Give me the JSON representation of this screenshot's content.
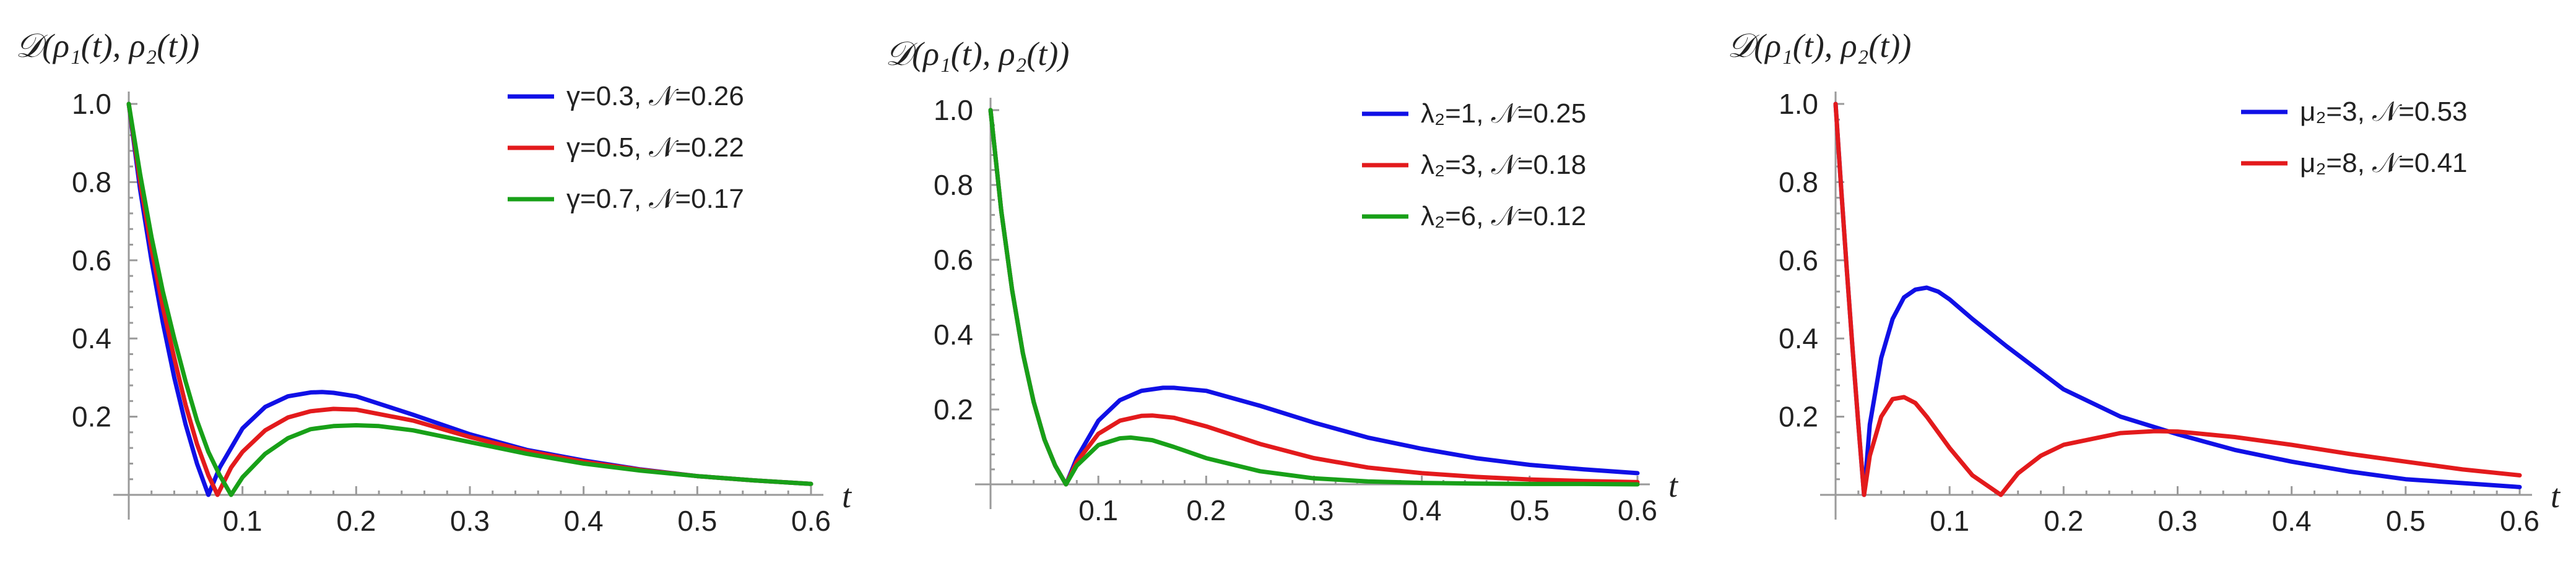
{
  "colors": {
    "blue": "#1010e6",
    "red": "#e31a1c",
    "green": "#18a018",
    "axis": "#9a9a9a"
  },
  "chart_data": [
    {
      "type": "line",
      "ylabel": "𝒟(ρ₁(t), ρ₂(t))",
      "xlabel": "t",
      "xlim": [
        0,
        0.6
      ],
      "ylim": [
        0,
        1.0
      ],
      "xticks": [
        "0.1",
        "0.2",
        "0.3",
        "0.4",
        "0.5",
        "0.6"
      ],
      "yticks": [
        "0.2",
        "0.4",
        "0.6",
        "0.8",
        "1.0"
      ],
      "legend_position": "top-right",
      "series": [
        {
          "name": "γ=0.3, 𝒩=0.26",
          "color": "blue",
          "x": [
            0,
            0.01,
            0.02,
            0.03,
            0.04,
            0.05,
            0.06,
            0.07,
            0.08,
            0.1,
            0.12,
            0.14,
            0.16,
            0.17,
            0.18,
            0.2,
            0.25,
            0.3,
            0.35,
            0.4,
            0.45,
            0.5,
            0.55,
            0.6
          ],
          "y": [
            1.0,
            0.78,
            0.6,
            0.44,
            0.3,
            0.18,
            0.08,
            0.0,
            0.07,
            0.17,
            0.225,
            0.252,
            0.262,
            0.263,
            0.261,
            0.252,
            0.205,
            0.155,
            0.115,
            0.088,
            0.065,
            0.048,
            0.037,
            0.028
          ]
        },
        {
          "name": "γ=0.5, 𝒩=0.22",
          "color": "red",
          "x": [
            0,
            0.01,
            0.02,
            0.03,
            0.04,
            0.05,
            0.06,
            0.07,
            0.078,
            0.09,
            0.1,
            0.12,
            0.14,
            0.16,
            0.18,
            0.2,
            0.25,
            0.3,
            0.35,
            0.4,
            0.45,
            0.5,
            0.55,
            0.6
          ],
          "y": [
            1.0,
            0.8,
            0.63,
            0.48,
            0.35,
            0.23,
            0.13,
            0.05,
            0.0,
            0.07,
            0.11,
            0.165,
            0.198,
            0.214,
            0.22,
            0.218,
            0.19,
            0.148,
            0.112,
            0.085,
            0.064,
            0.048,
            0.037,
            0.028
          ]
        },
        {
          "name": "γ=0.7, 𝒩=0.17",
          "color": "green",
          "x": [
            0,
            0.01,
            0.02,
            0.03,
            0.04,
            0.05,
            0.06,
            0.07,
            0.08,
            0.09,
            0.1,
            0.12,
            0.14,
            0.16,
            0.18,
            0.2,
            0.22,
            0.25,
            0.3,
            0.35,
            0.4,
            0.45,
            0.5,
            0.55,
            0.6
          ],
          "y": [
            1.0,
            0.82,
            0.66,
            0.52,
            0.4,
            0.29,
            0.19,
            0.11,
            0.05,
            0.0,
            0.045,
            0.105,
            0.145,
            0.168,
            0.176,
            0.178,
            0.176,
            0.165,
            0.135,
            0.105,
            0.08,
            0.062,
            0.048,
            0.037,
            0.028
          ]
        }
      ]
    },
    {
      "type": "line",
      "ylabel": "𝒟(ρ₁(t), ρ₂(t))",
      "xlabel": "t",
      "xlim": [
        0,
        0.6
      ],
      "ylim": [
        0,
        1.0
      ],
      "xticks": [
        "0.1",
        "0.2",
        "0.3",
        "0.4",
        "0.5",
        "0.6"
      ],
      "yticks": [
        "0.2",
        "0.4",
        "0.6",
        "0.8",
        "1.0"
      ],
      "legend_position": "top-right",
      "series": [
        {
          "name": "λ₂=1, 𝒩=0.25",
          "color": "blue",
          "x": [
            0,
            0.01,
            0.02,
            0.03,
            0.04,
            0.05,
            0.06,
            0.07,
            0.08,
            0.1,
            0.12,
            0.14,
            0.16,
            0.17,
            0.2,
            0.25,
            0.3,
            0.35,
            0.4,
            0.45,
            0.5,
            0.55,
            0.6
          ],
          "y": [
            1.0,
            0.73,
            0.52,
            0.35,
            0.22,
            0.12,
            0.05,
            0.0,
            0.07,
            0.17,
            0.225,
            0.25,
            0.258,
            0.258,
            0.25,
            0.21,
            0.165,
            0.125,
            0.095,
            0.07,
            0.052,
            0.04,
            0.03
          ]
        },
        {
          "name": "λ₂=3, 𝒩=0.18",
          "color": "red",
          "x": [
            0,
            0.01,
            0.02,
            0.03,
            0.04,
            0.05,
            0.06,
            0.07,
            0.08,
            0.1,
            0.12,
            0.14,
            0.15,
            0.17,
            0.2,
            0.25,
            0.3,
            0.35,
            0.4,
            0.45,
            0.5,
            0.55,
            0.6
          ],
          "y": [
            1.0,
            0.73,
            0.52,
            0.35,
            0.22,
            0.12,
            0.05,
            0.0,
            0.06,
            0.135,
            0.17,
            0.183,
            0.184,
            0.178,
            0.155,
            0.108,
            0.07,
            0.045,
            0.03,
            0.02,
            0.013,
            0.009,
            0.006
          ]
        },
        {
          "name": "λ₂=6, 𝒩=0.12",
          "color": "green",
          "x": [
            0,
            0.01,
            0.02,
            0.03,
            0.04,
            0.05,
            0.06,
            0.07,
            0.08,
            0.1,
            0.12,
            0.13,
            0.15,
            0.17,
            0.2,
            0.25,
            0.3,
            0.35,
            0.4,
            0.45,
            0.5,
            0.55,
            0.6
          ],
          "y": [
            1.0,
            0.73,
            0.52,
            0.35,
            0.22,
            0.12,
            0.05,
            0.0,
            0.05,
            0.105,
            0.123,
            0.125,
            0.118,
            0.1,
            0.07,
            0.035,
            0.016,
            0.008,
            0.004,
            0.002,
            0.001,
            0.001,
            0.0
          ]
        }
      ]
    },
    {
      "type": "line",
      "ylabel": "𝒟(ρ₁(t), ρ₂(t))",
      "xlabel": "t",
      "xlim": [
        0,
        0.6
      ],
      "ylim": [
        0,
        1.0
      ],
      "xticks": [
        "0.1",
        "0.2",
        "0.3",
        "0.4",
        "0.5",
        "0.6"
      ],
      "yticks": [
        "0.2",
        "0.4",
        "0.6",
        "0.8",
        "1.0"
      ],
      "legend_position": "top-right",
      "series": [
        {
          "name": "μ₂=3, 𝒩=0.53",
          "color": "blue",
          "x": [
            0,
            0.005,
            0.01,
            0.015,
            0.02,
            0.025,
            0.03,
            0.04,
            0.05,
            0.06,
            0.07,
            0.08,
            0.09,
            0.1,
            0.12,
            0.15,
            0.2,
            0.25,
            0.3,
            0.35,
            0.4,
            0.45,
            0.5,
            0.55,
            0.6
          ],
          "y": [
            1.0,
            0.78,
            0.57,
            0.37,
            0.18,
            0.0,
            0.18,
            0.35,
            0.45,
            0.505,
            0.525,
            0.53,
            0.52,
            0.5,
            0.45,
            0.38,
            0.27,
            0.2,
            0.155,
            0.115,
            0.085,
            0.06,
            0.04,
            0.03,
            0.02
          ]
        },
        {
          "name": "μ₂=8, 𝒩=0.41",
          "color": "red",
          "x": [
            0,
            0.005,
            0.01,
            0.015,
            0.02,
            0.025,
            0.03,
            0.04,
            0.05,
            0.06,
            0.07,
            0.08,
            0.1,
            0.12,
            0.145,
            0.16,
            0.18,
            0.2,
            0.25,
            0.28,
            0.3,
            0.35,
            0.4,
            0.45,
            0.5,
            0.55,
            0.6
          ],
          "y": [
            1.0,
            0.78,
            0.57,
            0.37,
            0.18,
            0.0,
            0.1,
            0.2,
            0.245,
            0.25,
            0.235,
            0.2,
            0.12,
            0.05,
            0.0,
            0.055,
            0.1,
            0.128,
            0.158,
            0.163,
            0.162,
            0.148,
            0.128,
            0.105,
            0.085,
            0.065,
            0.05
          ]
        }
      ]
    }
  ]
}
